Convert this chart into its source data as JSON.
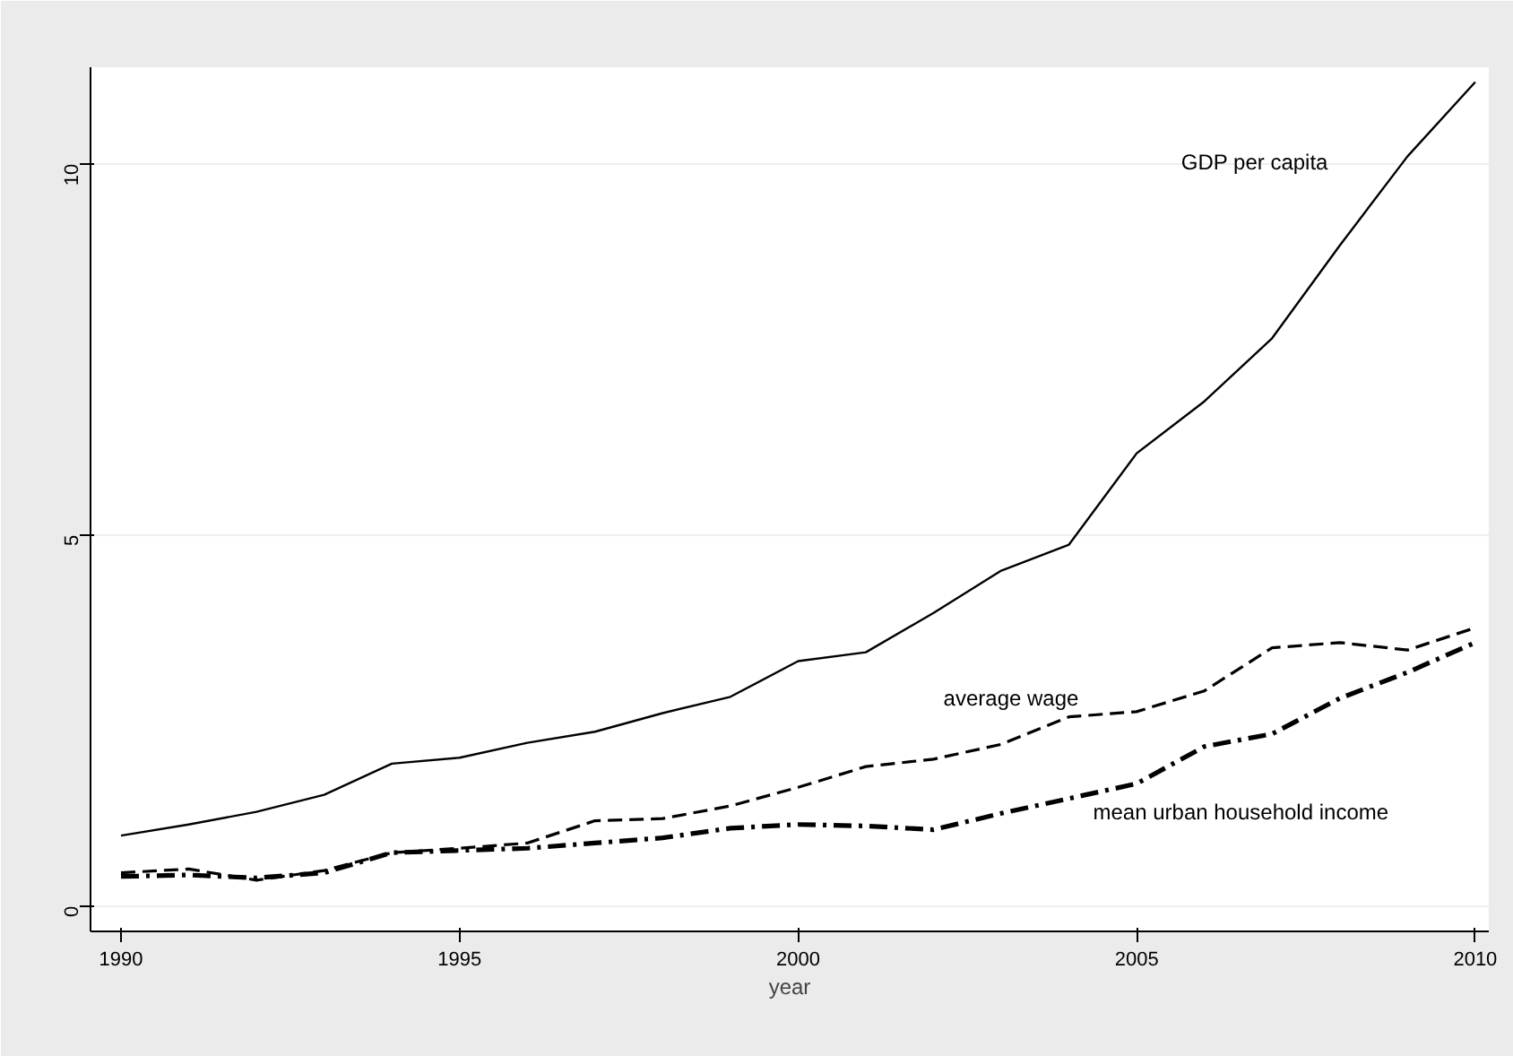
{
  "chart_data": {
    "type": "line",
    "xlabel": "year",
    "x": [
      1990,
      1991,
      1992,
      1993,
      1994,
      1995,
      1996,
      1997,
      1998,
      1999,
      2000,
      2001,
      2002,
      2003,
      2004,
      2005,
      2006,
      2007,
      2008,
      2009,
      2010
    ],
    "series": [
      {
        "name": "GDP per capita",
        "color": "#000000",
        "line_style": "solid",
        "values": [
          0.95,
          1.1,
          1.27,
          1.5,
          1.92,
          2.0,
          2.2,
          2.35,
          2.6,
          2.82,
          3.3,
          3.42,
          3.95,
          4.52,
          4.87,
          6.1,
          6.8,
          7.65,
          8.9,
          10.1,
          11.1
        ]
      },
      {
        "name": "average wage",
        "color": "#000000",
        "line_style": "dashed",
        "values": [
          0.45,
          0.5,
          0.35,
          0.48,
          0.72,
          0.78,
          0.85,
          1.15,
          1.18,
          1.35,
          1.6,
          1.88,
          1.98,
          2.18,
          2.55,
          2.62,
          2.9,
          3.48,
          3.55,
          3.45,
          3.75
        ]
      },
      {
        "name": "mean urban household income",
        "color": "#000000",
        "line_style": "dashdot",
        "values": [
          0.4,
          0.42,
          0.38,
          0.45,
          0.72,
          0.75,
          0.78,
          0.85,
          0.92,
          1.05,
          1.1,
          1.08,
          1.03,
          1.25,
          1.45,
          1.65,
          2.15,
          2.32,
          2.8,
          3.15,
          3.55
        ]
      }
    ],
    "xlim": [
      1989.55,
      2010.2
    ],
    "xticks": [
      1990,
      1995,
      2000,
      2005,
      2010
    ],
    "ylim": [
      -0.34,
      11.3
    ],
    "yticks": [
      0,
      5,
      10
    ],
    "grid": "y"
  }
}
